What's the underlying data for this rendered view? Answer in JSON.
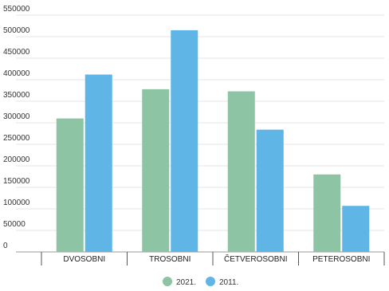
{
  "chart_data": {
    "type": "bar",
    "title": "",
    "xlabel": "",
    "ylabel": "",
    "categories": [
      "DVOSOBNI",
      "TROSOBNI",
      "ČETVEROSOBNI",
      "PETEROSOBNI"
    ],
    "series": [
      {
        "name": "2021.",
        "color": "#8dc4a4",
        "values": [
          310000,
          378000,
          373000,
          180000
        ]
      },
      {
        "name": "2011.",
        "color": "#5eb5e6",
        "values": [
          412000,
          515000,
          284000,
          107000
        ]
      }
    ],
    "ylim": [
      0,
      550000
    ],
    "yticks": [
      0,
      50000,
      100000,
      150000,
      200000,
      250000,
      300000,
      350000,
      400000,
      450000,
      500000,
      550000
    ],
    "grid": true,
    "legend_position": "bottom-center"
  }
}
